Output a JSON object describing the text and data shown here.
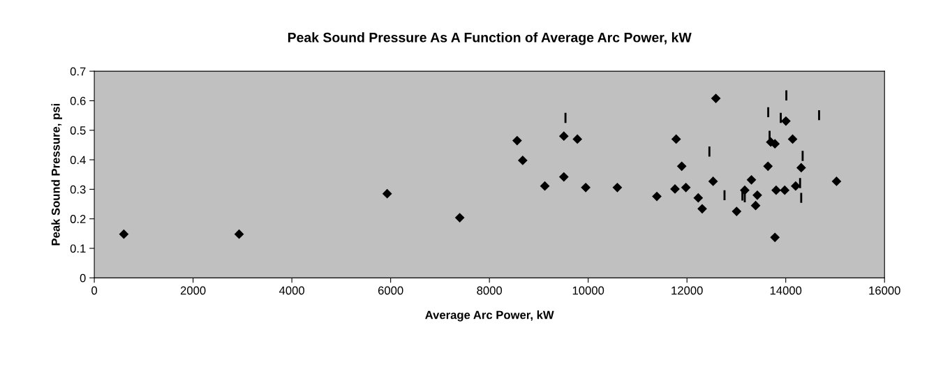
{
  "chart_data": {
    "type": "scatter",
    "title": "Peak Sound Pressure As A Function of Average Arc Power, kW",
    "xlabel": "Average Arc Power, kW",
    "ylabel": "Peak Sound Pressure, psi",
    "xlim": [
      0,
      16000
    ],
    "xticks": [
      0,
      2000,
      4000,
      6000,
      8000,
      10000,
      12000,
      14000,
      16000
    ],
    "ylim": [
      0,
      0.7
    ],
    "yticks": [
      0,
      0.1,
      0.2,
      0.3,
      0.4,
      0.5,
      0.6,
      0.7
    ],
    "grid": false,
    "series": [
      {
        "color": "#000000",
        "marker": "diamond",
        "x": [
          598,
          2932,
          5930,
          7399,
          8561,
          8674,
          9122,
          9507,
          9507,
          9781,
          9950,
          10590,
          11390,
          11781,
          11757,
          11894,
          11978,
          12228,
          12308,
          12585,
          12529,
          13005,
          13170,
          13305,
          13424,
          13390,
          13640,
          13696,
          13781,
          14003,
          14139,
          14313,
          14200,
          13805,
          13979,
          13781,
          15028
        ],
        "values": [
          0.148,
          0.148,
          0.285,
          0.204,
          0.465,
          0.398,
          0.311,
          0.48,
          0.342,
          0.47,
          0.306,
          0.306,
          0.276,
          0.47,
          0.301,
          0.378,
          0.306,
          0.271,
          0.234,
          0.608,
          0.327,
          0.225,
          0.297,
          0.332,
          0.28,
          0.245,
          0.378,
          0.46,
          0.454,
          0.531,
          0.47,
          0.373,
          0.311,
          0.297,
          0.297,
          0.137,
          0.327
        ]
      },
      {
        "type": "bar",
        "color": "#000000",
        "x": [
          9540,
          12454,
          12760,
          13122,
          13170,
          13645,
          13673,
          13899,
          14012,
          14290,
          14313,
          14342,
          14675
        ],
        "base": [
          0.525,
          0.411,
          0.263,
          0.262,
          0.256,
          0.544,
          0.464,
          0.525,
          0.601,
          0.304,
          0.254,
          0.396,
          0.534
        ],
        "values": [
          0.034,
          0.034,
          0.034,
          0.034,
          0.034,
          0.034,
          0.034,
          0.034,
          0.034,
          0.034,
          0.034,
          0.034,
          0.034
        ]
      }
    ]
  }
}
